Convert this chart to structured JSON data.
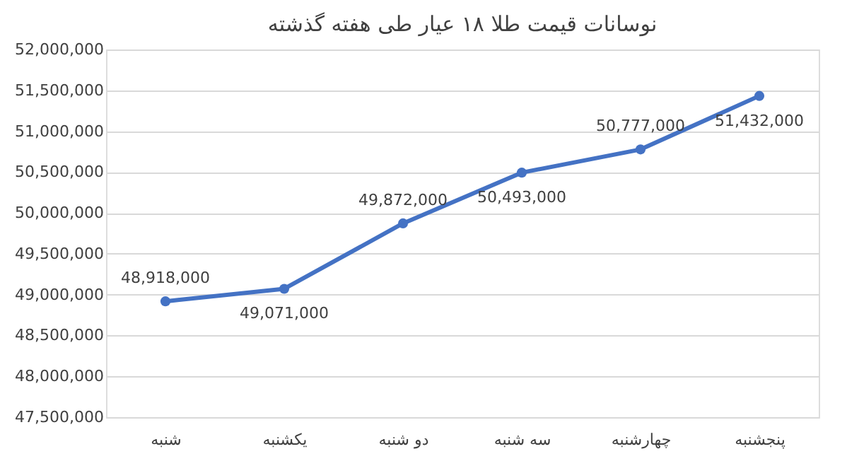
{
  "chart_data": {
    "type": "line",
    "title": "نوسانات قیمت طلا ۱۸ عیار طی هفته گذشته",
    "categories": [
      "شنبه",
      "یکشنبه",
      "دو شنبه",
      "سه شنبه",
      "چهارشنبه",
      "پنجشنبه"
    ],
    "series": [
      {
        "color": "#4472c4",
        "values": [
          48918000,
          49071000,
          49872000,
          50493000,
          50777000,
          51432000
        ],
        "value_labels": [
          "48,918,000",
          "49,071,000",
          "49,872,000",
          "50,493,000",
          "50,777,000",
          "51,432,000"
        ]
      }
    ],
    "ylim": [
      47500000,
      52000000
    ],
    "yticks": [
      {
        "value": 47500000,
        "label": "47,500,000"
      },
      {
        "value": 48000000,
        "label": "48,000,000"
      },
      {
        "value": 48500000,
        "label": "48,500,000"
      },
      {
        "value": 49000000,
        "label": "49,000,000"
      },
      {
        "value": 49500000,
        "label": "49,500,000"
      },
      {
        "value": 50000000,
        "label": "50,000,000"
      },
      {
        "value": 50500000,
        "label": "50,500,000"
      },
      {
        "value": 51000000,
        "label": "51,000,000"
      },
      {
        "value": 51500000,
        "label": "51,500,000"
      },
      {
        "value": 52000000,
        "label": "52,000,000"
      }
    ],
    "grid": "y",
    "marker": "circle",
    "line_style": "solid"
  }
}
